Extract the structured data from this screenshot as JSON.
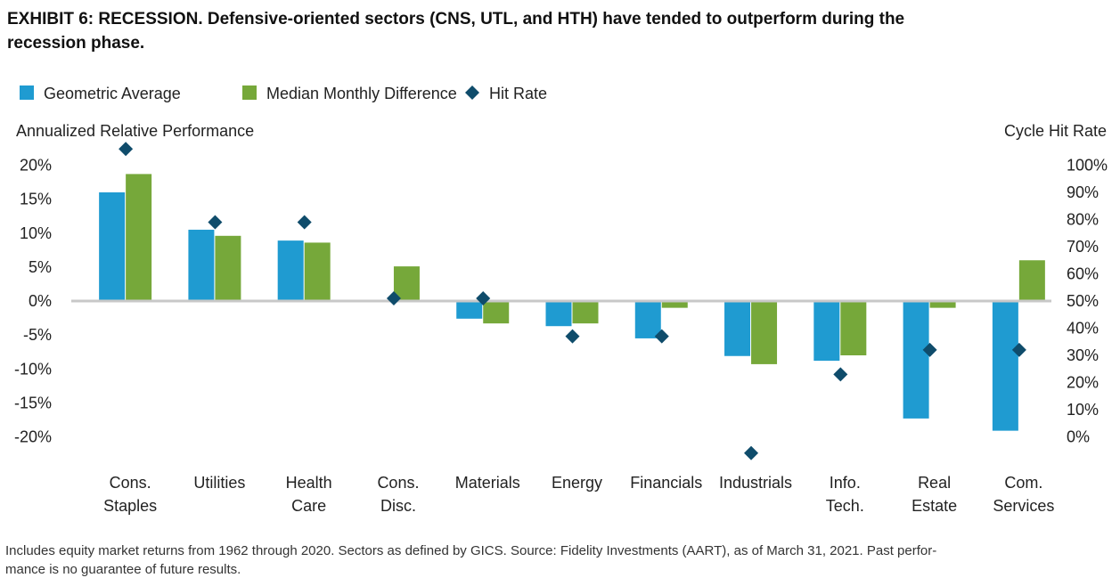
{
  "chart_data": {
    "type": "bar",
    "title": [
      "EXHIBIT 6: RECESSION. Defensive-oriented sectors (CNS, UTL, and HTH) have tended to outperform during the",
      "recession phase."
    ],
    "ylabel": "Annualized Relative Performance",
    "y2label": "Cycle Hit Rate",
    "categories": [
      [
        "Cons.",
        "Staples"
      ],
      [
        "Utilities"
      ],
      [
        "Health",
        "Care"
      ],
      [
        "Cons.",
        "Disc."
      ],
      [
        "Materials"
      ],
      [
        "Energy"
      ],
      [
        "Financials"
      ],
      [
        "Industrials"
      ],
      [
        "Info.",
        "Tech."
      ],
      [
        "Real",
        "Estate"
      ],
      [
        "Com.",
        "Services"
      ]
    ],
    "series": [
      {
        "name": "Geometric Average",
        "color": "#1f9bd1",
        "values": [
          16.0,
          10.5,
          8.9,
          0,
          -2.6,
          -3.7,
          -5.5,
          -8.1,
          -8.8,
          -17.3,
          -19.1
        ]
      },
      {
        "name": "Median Monthly Difference",
        "color": "#76a83a",
        "values": [
          18.7,
          9.6,
          8.6,
          5.1,
          -3.3,
          -3.3,
          -1.0,
          -9.3,
          -8.0,
          -1.0,
          6.0
        ]
      },
      {
        "name": "Hit Rate",
        "color": "#0f4c6b",
        "type": "scatter",
        "axis": "y2",
        "values": [
          106,
          79,
          79,
          51,
          51,
          37,
          37,
          -6,
          23,
          32,
          32
        ]
      }
    ],
    "ylim": [
      -24,
      24
    ],
    "yticks": [
      {
        "value": 20,
        "label": "20%"
      },
      {
        "value": 15,
        "label": "15%"
      },
      {
        "value": 10,
        "label": "10%"
      },
      {
        "value": 5,
        "label": "5%"
      },
      {
        "value": 0,
        "label": "0%"
      },
      {
        "value": -5,
        "label": "-5%"
      },
      {
        "value": -10,
        "label": "-10%"
      },
      {
        "value": -15,
        "label": "-15%"
      },
      {
        "value": -20,
        "label": "-20%"
      }
    ],
    "y2lim": [
      -10,
      110
    ],
    "y2ticks": [
      {
        "value": 100,
        "label": "100%"
      },
      {
        "value": 90,
        "label": "90%"
      },
      {
        "value": 80,
        "label": "80%"
      },
      {
        "value": 70,
        "label": "70%"
      },
      {
        "value": 60,
        "label": "60%"
      },
      {
        "value": 50,
        "label": "50%"
      },
      {
        "value": 40,
        "label": "40%"
      },
      {
        "value": 30,
        "label": "30%"
      },
      {
        "value": 20,
        "label": "20%"
      },
      {
        "value": 10,
        "label": "10%"
      },
      {
        "value": 0,
        "label": "0%"
      }
    ],
    "footnote": [
      "Includes equity market returns from 1962 through 2020. Sectors as defined by GICS. Source: Fidelity Investments (AART), as of March 31, 2021. Past perfor-",
      "mance is no guarantee of future results."
    ]
  }
}
